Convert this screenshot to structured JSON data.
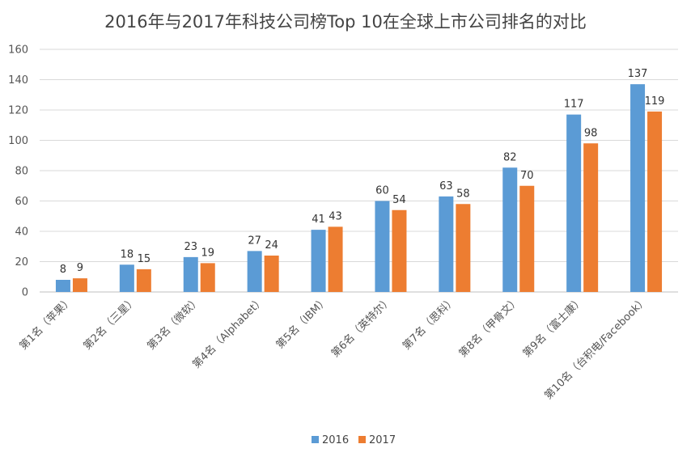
{
  "chart_data": {
    "type": "bar",
    "title": "2016年与2017年科技公司榜Top 10在全球上市公司排名的对比",
    "xlabel": "",
    "ylabel": "",
    "categories": [
      "第1名（苹果）",
      "第2名（三星）",
      "第3名（微软）",
      "第4名（Alphabet）",
      "第5名（IBM）",
      "第6名（英特尔）",
      "第7名（思科）",
      "第8名（甲骨文）",
      "第9名（富士康）",
      "第10名（台积电/Facebook）"
    ],
    "series": [
      {
        "name": "2016",
        "values": [
          8,
          18,
          23,
          27,
          41,
          60,
          63,
          82,
          117,
          137
        ]
      },
      {
        "name": "2017",
        "values": [
          9,
          15,
          19,
          24,
          43,
          54,
          58,
          70,
          98,
          119
        ]
      }
    ],
    "ylim": [
      0,
      160
    ],
    "yticks": [
      0,
      20,
      40,
      60,
      80,
      100,
      120,
      140,
      160
    ],
    "grid": true,
    "legend": "bottom",
    "colors": {
      "2016": "#5B9BD5",
      "2017": "#ED7D31",
      "grid": "#D9D9D9",
      "axis": "#BFBFBF"
    }
  }
}
